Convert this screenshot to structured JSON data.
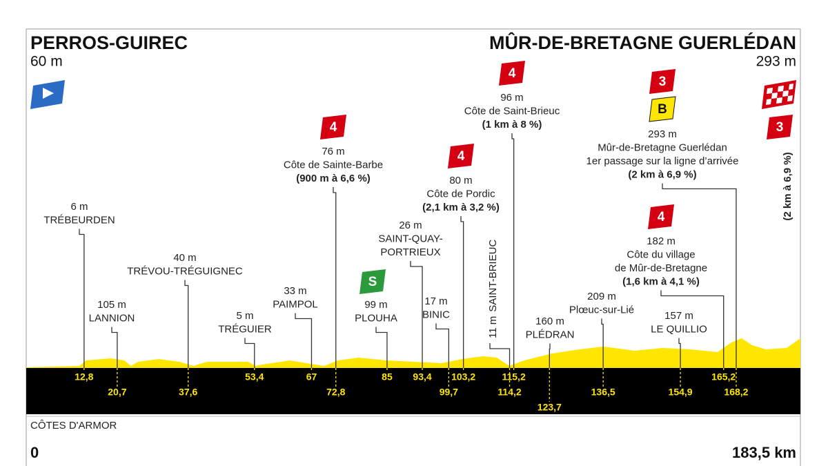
{
  "start": {
    "name": "PERROS-GUIREC",
    "altitude": "60 m"
  },
  "finish": {
    "name": "MÛR-DE-BRETAGNE GUERLÉDAN",
    "altitude": "293 m",
    "category": "3",
    "gradient": "(2 km à 6,9 %)"
  },
  "start_distance": "0",
  "total_distance": {
    "value": 183.5,
    "label": "183,5 km"
  },
  "region": "CÔTES D'ARMOR",
  "points": [
    {
      "altitude": "6 m",
      "name": "TRÉBEURDEN",
      "km": {
        "value": 12.8,
        "label": "12,8"
      }
    },
    {
      "altitude": "105 m",
      "name": "LANNION",
      "km": {
        "value": 20.7,
        "label": "20,7"
      }
    },
    {
      "altitude": "40 m",
      "name": "TRÉVOU-TRÉGUIGNEC",
      "km": {
        "value": 37.6,
        "label": "37,6"
      }
    },
    {
      "altitude": "5 m",
      "name": "TRÉGUIER",
      "km": {
        "value": 53.4,
        "label": "53,4"
      }
    },
    {
      "altitude": "33 m",
      "name": "PAIMPOL",
      "km": {
        "value": 67,
        "label": "67"
      }
    },
    {
      "altitude": "76 m",
      "name": "Côte de Sainte-Barbe",
      "gradient": "(900 m à 6,6 %)",
      "category": "4",
      "km": {
        "value": 72.8,
        "label": "72,8"
      }
    },
    {
      "altitude": "99 m",
      "name": "PLOUHA",
      "sprint": "S",
      "km": {
        "value": 85,
        "label": "85"
      }
    },
    {
      "altitude": "26 m",
      "name": [
        "SAINT-QUAY-",
        "PORTRIEUX"
      ],
      "km": {
        "value": 93.4,
        "label": "93,4"
      }
    },
    {
      "altitude": "17 m",
      "name": "BINIC",
      "km": {
        "value": 99.7,
        "label": "99,7"
      }
    },
    {
      "altitude": "80 m",
      "name": "Côte de Pordic",
      "gradient": "(2,1 km à 3,2 %)",
      "category": "4",
      "km": {
        "value": 103.2,
        "label": "103,2"
      }
    },
    {
      "altitude": "11 m",
      "name": "SAINT-BRIEUC",
      "km": {
        "value": 114.2,
        "label": "114,2"
      }
    },
    {
      "altitude": "96 m",
      "name": "Côte de Saint-Brieuc",
      "gradient": "(1 km à 8 %)",
      "category": "4",
      "km": {
        "value": 115.2,
        "label": "115,2"
      }
    },
    {
      "altitude": "160 m",
      "name": "PLÉDRAN",
      "km": {
        "value": 123.7,
        "label": "123,7"
      }
    },
    {
      "altitude": "209 m",
      "name": "Plœuc-sur-Lié",
      "km": {
        "value": 136.5,
        "label": "136,5"
      }
    },
    {
      "altitude": "157 m",
      "name": "LE QUILLIO",
      "km": {
        "value": 154.9,
        "label": "154,9"
      }
    },
    {
      "altitude": "182 m",
      "name": [
        "Côte du village",
        "de Mûr-de-Bretagne"
      ],
      "gradient": "(1,6 km à 4,1 %)",
      "category": "4",
      "km": {
        "value": 165.2,
        "label": "165,2"
      }
    },
    {
      "altitude": "293 m",
      "name": "Mûr-de-Bretagne Guerlédan",
      "note": "1er passage sur la ligne d’arrivée",
      "gradient": "(2 km à 6,9 %)",
      "category": "3",
      "bonus": "B",
      "km": {
        "value": 168.2,
        "label": "168,2"
      }
    }
  ]
}
